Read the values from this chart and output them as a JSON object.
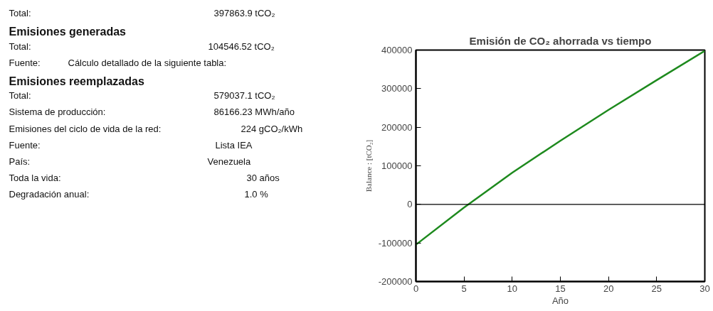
{
  "chart_data": [
    {
      "type": "other",
      "annotations": [
        "Total:",
        "397863.9 tCO₂",
        "Emisiones generadas",
        "Total:",
        "104546.52 tCO₂",
        "Fuente:",
        "Cálculo detallado de la siguiente tabla:",
        "Emisiones reemplazadas",
        "Total:",
        "579037.1 tCO₂",
        "Sistema de producción:",
        "86166.23 MWh/año",
        "Emisiones del ciclo de vida de la red:",
        "224 gCO₂/kWh",
        "Fuente:",
        "Lista IEA",
        "País:",
        "Venezuela",
        "Toda la vida:",
        "30 años",
        "Degradación anual:",
        "1.0 %"
      ]
    },
    {
      "type": "line",
      "title": "Emisión de CO₂ ahorrada vs tiempo",
      "xlabel": "Año",
      "ylabel": "Balance : [tCO₂]",
      "x": [
        0,
        5,
        10,
        15,
        20,
        25,
        30
      ],
      "series": [
        {
          "color": "#1e8a1e",
          "values": [
            -104500,
            -8000,
            82000,
            165000,
            245000,
            322000,
            397900
          ]
        }
      ],
      "xlim": [
        0,
        30
      ],
      "xticks": [
        0,
        5,
        10,
        15,
        20,
        25,
        30
      ],
      "ylim": [
        -200000,
        400000
      ],
      "yticks": [
        -200000,
        -100000,
        0,
        100000,
        200000,
        300000,
        400000
      ],
      "ref_lines": [
        {
          "axis": "y",
          "value": 0,
          "color": "#000000"
        }
      ],
      "grid": false,
      "marker": "none",
      "line_style": "solid"
    }
  ]
}
